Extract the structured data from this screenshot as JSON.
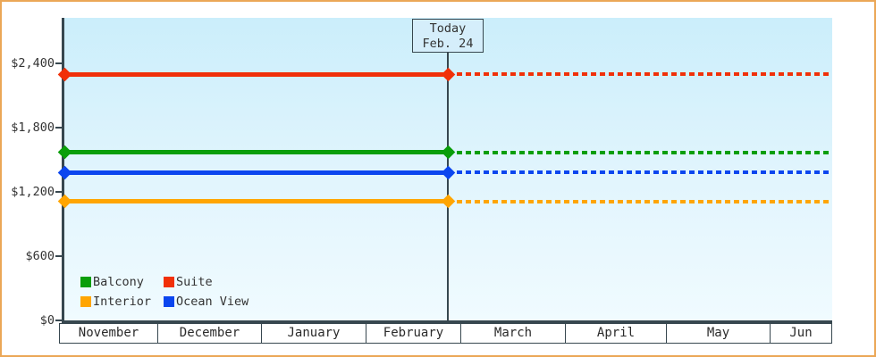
{
  "frame": {
    "border_color": "#eba757",
    "background": "#ffffff"
  },
  "chart_data": {
    "type": "line",
    "title": "",
    "description": "Cruise cabin price chart: flat price lines per cabin type, solid history before today, dashed projection after today",
    "x_axis": {
      "months": [
        "November",
        "December",
        "January",
        "February",
        "March",
        "April",
        "May",
        "Jun"
      ]
    },
    "y_axis": {
      "prefix": "$",
      "tick_labels": [
        "$0",
        "$600",
        "$1,200",
        "$1,800",
        "$2,400"
      ],
      "tick_values": [
        0,
        600,
        1200,
        1800,
        2400
      ],
      "ylim": [
        0,
        2825
      ],
      "grid": false
    },
    "today": {
      "label_line1": "Today",
      "label_line2": "Feb. 24",
      "x_fraction": 0.4994
    },
    "series": [
      {
        "name": "Suite",
        "color": "#f13008",
        "value": 2300,
        "style": "solid-then-dashed"
      },
      {
        "name": "Balcony",
        "color": "#0a9e0a",
        "value": 1570,
        "style": "solid-then-dashed"
      },
      {
        "name": "Ocean View",
        "color": "#0b46ef",
        "value": 1380,
        "style": "solid-then-dashed"
      },
      {
        "name": "Interior",
        "color": "#ffa502",
        "value": 1110,
        "style": "solid-then-dashed"
      }
    ],
    "legend": {
      "order": [
        "Balcony",
        "Suite",
        "Interior",
        "Ocean View"
      ],
      "position": "bottom-left-inside"
    },
    "style": {
      "plot_gradient_top": "#cbeefb",
      "plot_gradient_bottom": "#f0fbff",
      "axis_color": "#37474f",
      "text_color": "#333333",
      "month_cell_bg": "#ffffff"
    }
  }
}
